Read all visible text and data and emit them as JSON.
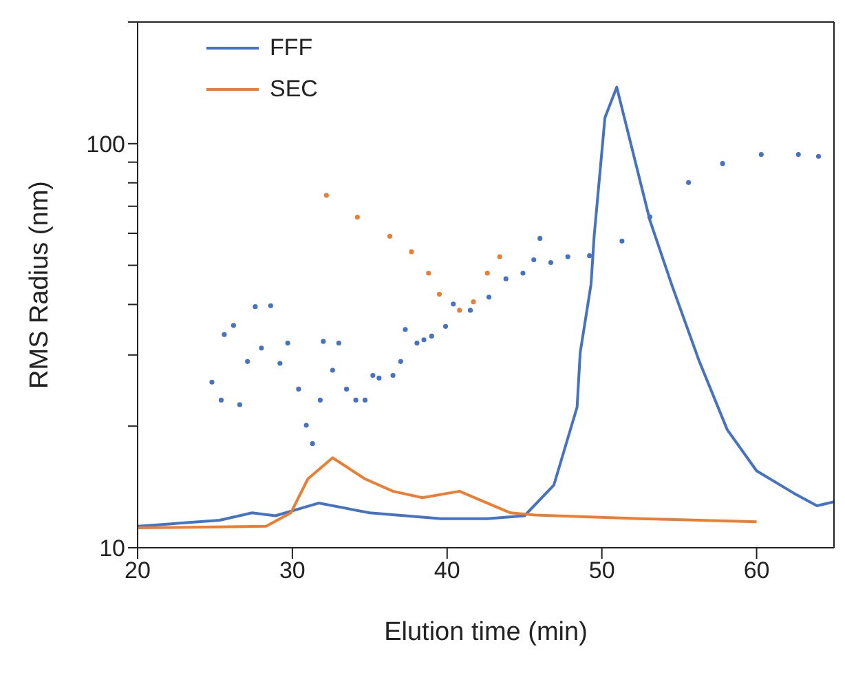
{
  "chart_data": {
    "type": "line",
    "xlabel": "Elution time (min)",
    "ylabel": "RMS Radius (nm)",
    "log": "y",
    "grid": false,
    "legend": "top left",
    "xlim": [
      20,
      65
    ],
    "xticks": [
      20,
      30,
      40,
      50,
      60
    ],
    "ylim": [
      10,
      200
    ],
    "yticks": [
      10,
      {
        "value": 20,
        "label": null
      },
      {
        "value": 30,
        "label": null
      },
      {
        "value": 40,
        "label": null
      },
      {
        "value": 50,
        "label": null
      },
      {
        "value": 60,
        "label": null
      },
      {
        "value": 70,
        "label": null
      },
      {
        "value": 80,
        "label": null
      },
      {
        "value": 90,
        "label": null
      },
      100,
      {
        "value": 200,
        "label": null
      }
    ],
    "series": [
      {
        "name": "FFF",
        "color": "#4472c4",
        "x": [
          20,
          25.3,
          27.4,
          28.9,
          31.7,
          35,
          39.6,
          42.6,
          45,
          46.9,
          48.4,
          48.6,
          49.3,
          49.5,
          50.2,
          50.96,
          53.1,
          54.5,
          56.3,
          58.1,
          60,
          62.4,
          63.9,
          65
        ],
        "values": [
          11.3,
          11.7,
          12.2,
          12.0,
          12.9,
          12.2,
          11.8,
          11.8,
          12.0,
          14.3,
          22.3,
          30.4,
          44.9,
          59,
          116,
          138,
          64.7,
          44.9,
          28.9,
          19.6,
          15.5,
          13.65,
          12.7,
          13.0
        ]
      },
      {
        "name": "SEC",
        "color": "#ed7d31",
        "x": [
          20,
          28.3,
          29.9,
          31,
          32.6,
          34.7,
          36.5,
          38.4,
          40.8,
          42.6,
          44.1,
          45.7,
          52.5,
          60
        ],
        "values": [
          11.2,
          11.3,
          12.2,
          14.8,
          16.7,
          14.8,
          13.8,
          13.3,
          13.8,
          12.9,
          12.2,
          12.05,
          11.8,
          11.6
        ]
      },
      {
        "type": "scatter",
        "color": "#4472c4",
        "marker": "circle",
        "x": [
          24.8,
          25.4,
          25.6,
          26.2,
          26.6,
          27.1,
          27.6,
          28,
          28.6,
          29.2,
          29.7,
          30.4,
          30.9,
          31.3,
          31.8,
          32,
          32.6,
          33,
          33.5,
          34.1,
          34.7,
          35.2,
          35.6,
          36.5,
          37,
          37.3,
          38.05,
          38.5,
          39,
          39.9,
          40.4,
          41.5,
          42.7,
          43.8,
          44.9,
          45.6,
          46,
          46.7,
          47.8,
          49.2,
          51.3,
          53.1,
          55.6,
          57.8,
          60.3,
          62.7,
          64
        ],
        "values": [
          25.7,
          23.2,
          33.7,
          35.5,
          22.6,
          28.9,
          39.5,
          31.2,
          39.7,
          28.6,
          32.1,
          24.7,
          20.1,
          18.1,
          23.2,
          32.4,
          27.5,
          32.1,
          24.7,
          23.2,
          23.2,
          26.7,
          26.3,
          26.7,
          28.9,
          34.7,
          32.1,
          32.7,
          33.4,
          35.3,
          40.1,
          38.7,
          41.7,
          46.3,
          47.8,
          51.6,
          58.3,
          50.8,
          52.5,
          52.8,
          57.4,
          65.9,
          80.1,
          89.3,
          94,
          94,
          93
        ]
      },
      {
        "type": "scatter",
        "color": "#ed7d31",
        "marker": "circle",
        "x": [
          32.2,
          34.2,
          36.3,
          37.7,
          38.8,
          39.5,
          40.8,
          41.7,
          42.6,
          43.4
        ],
        "values": [
          74.5,
          65.8,
          59,
          54,
          47.8,
          42.4,
          38.7,
          40.6,
          47.8,
          52.5
        ]
      }
    ]
  }
}
